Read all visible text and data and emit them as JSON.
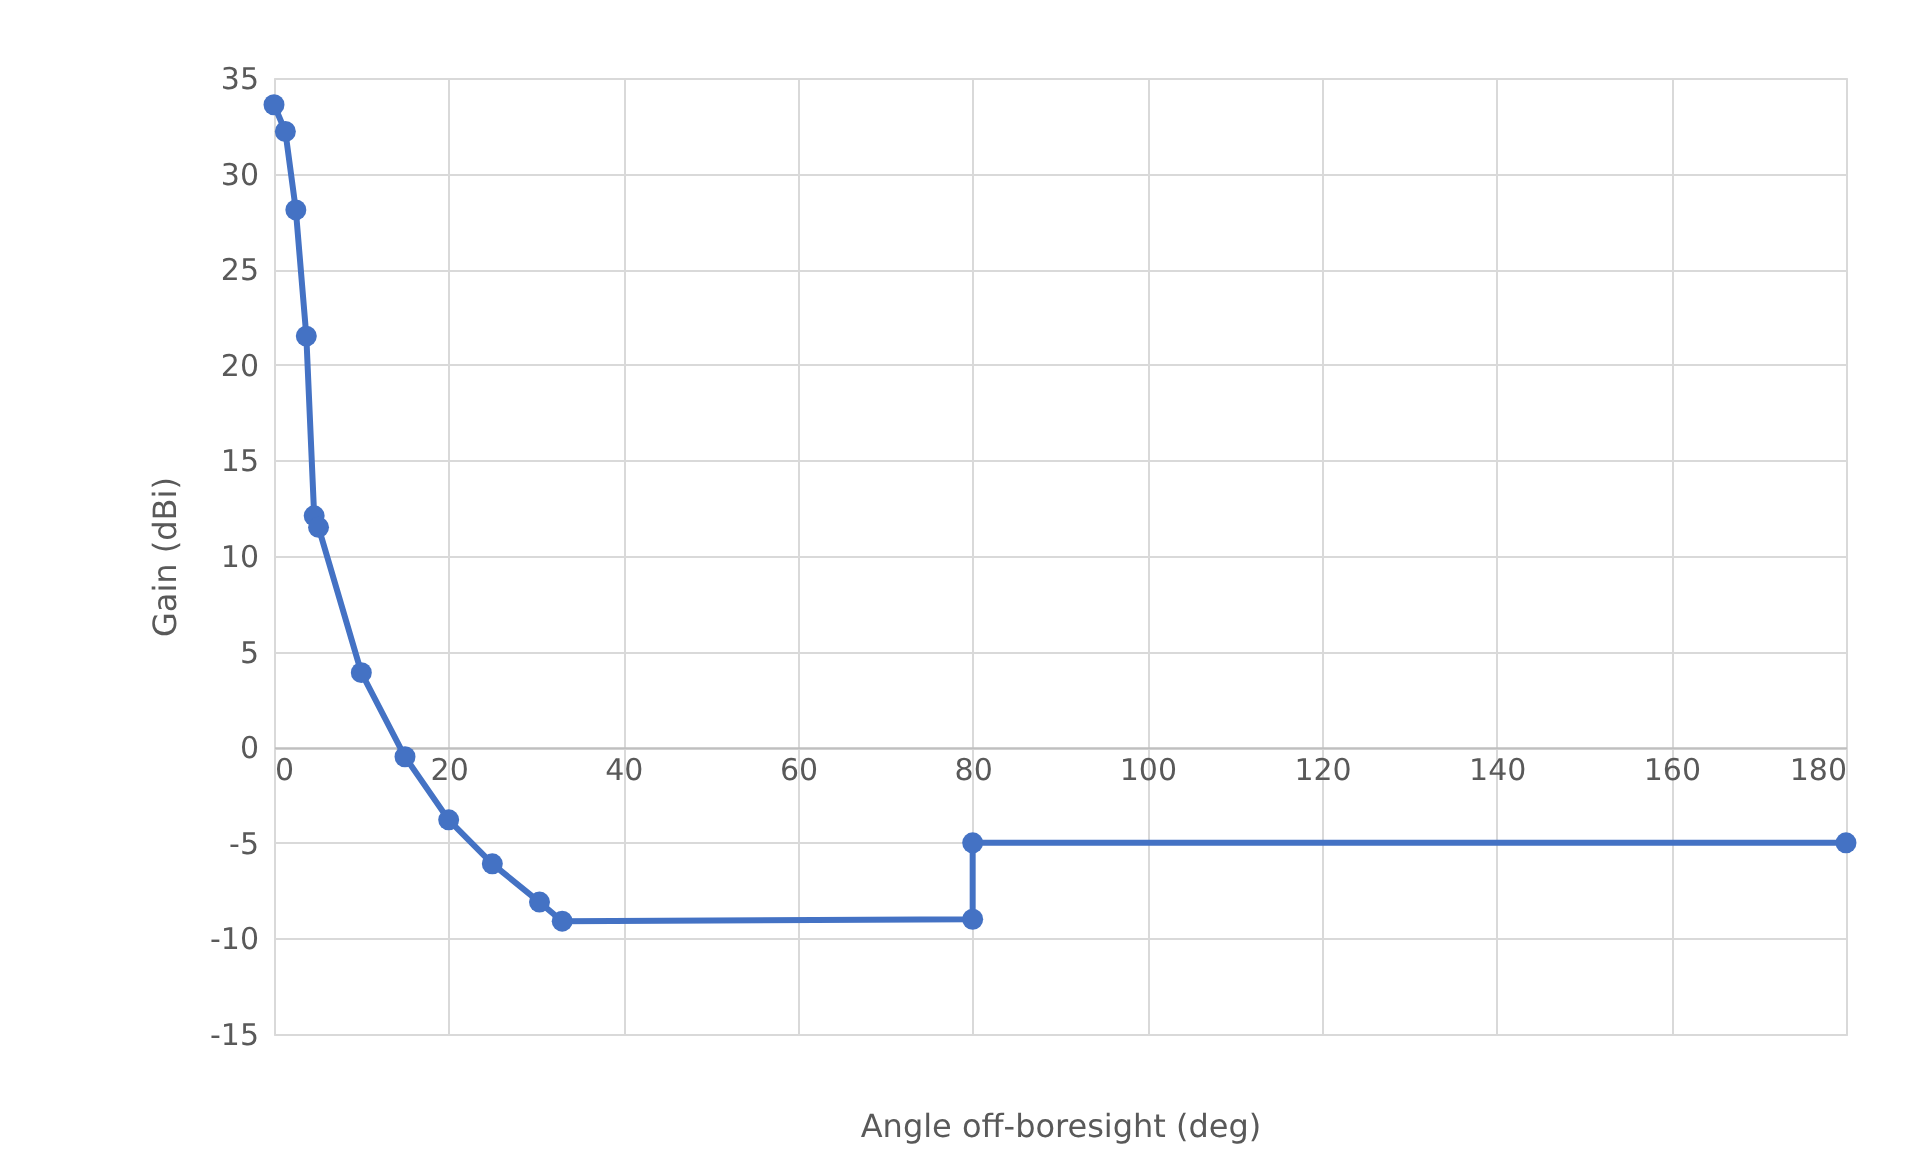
{
  "chart_data": {
    "type": "line",
    "xlabel": "Angle off-boresight (deg)",
    "ylabel": "Gain (dBi)",
    "x": [
      0,
      1.3,
      2.5,
      3.7,
      4.6,
      5.1,
      10,
      15,
      20,
      25,
      30.4,
      33,
      80,
      80,
      180
    ],
    "series": [
      {
        "color": "#4472c4",
        "values": [
          33.6,
          32.2,
          28.1,
          21.5,
          12.1,
          11.5,
          3.9,
          -0.5,
          -3.8,
          -6.1,
          -8.1,
          -9.1,
          -9,
          -5,
          -5
        ]
      }
    ],
    "xlim": [
      0,
      180
    ],
    "xticks": [
      0,
      20,
      40,
      60,
      80,
      100,
      120,
      140,
      160,
      180
    ],
    "ylim": [
      -15,
      35
    ],
    "yticks": [
      -15,
      -10,
      -5,
      0,
      5,
      10,
      15,
      20,
      25,
      30,
      35
    ],
    "grid": true,
    "marker": "circle",
    "line_style": "solid"
  }
}
